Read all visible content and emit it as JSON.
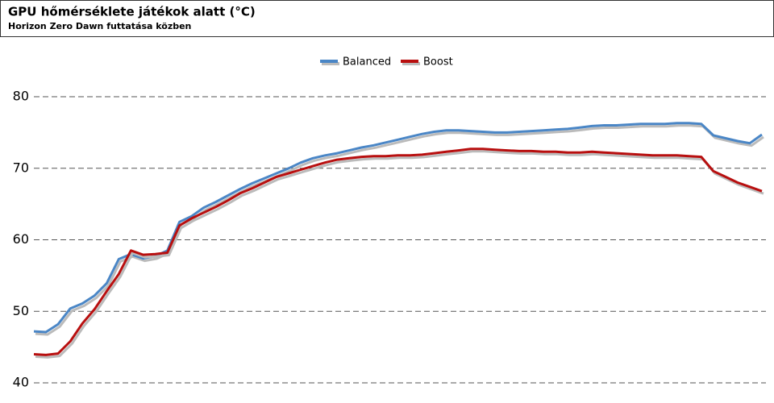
{
  "chart_data": {
    "type": "line",
    "title": "GPU hőmérséklete játékok alatt (°C)",
    "subtitle": "Horizon Zero Dawn futtatása közben",
    "ylim": [
      40,
      80
    ],
    "yticks": [
      40,
      50,
      60,
      70,
      80
    ],
    "grid": true,
    "legend": "top",
    "series": [
      {
        "name": "Balanced",
        "color": "#4a86c6",
        "values": [
          47.2,
          47.1,
          48.2,
          50.4,
          51.1,
          52.2,
          53.9,
          57.3,
          58.0,
          57.4,
          57.7,
          58.5,
          62.5,
          63.3,
          64.5,
          65.3,
          66.2,
          67.1,
          67.9,
          68.6,
          69.3,
          70.0,
          70.8,
          71.4,
          71.8,
          72.1,
          72.5,
          72.9,
          73.2,
          73.6,
          74.0,
          74.4,
          74.8,
          75.1,
          75.3,
          75.3,
          75.2,
          75.1,
          75.0,
          75.0,
          75.1,
          75.2,
          75.3,
          75.4,
          75.5,
          75.7,
          75.9,
          76.0,
          76.0,
          76.1,
          76.2,
          76.2,
          76.2,
          76.3,
          76.3,
          76.2,
          74.6,
          74.2,
          73.8,
          73.5,
          74.7
        ]
      },
      {
        "name": "Boost",
        "color": "#b80f0f",
        "values": [
          44.0,
          43.9,
          44.1,
          45.8,
          48.3,
          50.3,
          52.8,
          55.2,
          58.5,
          57.9,
          58.0,
          58.2,
          62.0,
          63.0,
          63.8,
          64.6,
          65.5,
          66.5,
          67.2,
          68.0,
          68.8,
          69.3,
          69.8,
          70.3,
          70.8,
          71.2,
          71.4,
          71.6,
          71.7,
          71.7,
          71.8,
          71.8,
          71.9,
          72.1,
          72.3,
          72.5,
          72.7,
          72.7,
          72.6,
          72.5,
          72.4,
          72.4,
          72.3,
          72.3,
          72.2,
          72.2,
          72.3,
          72.2,
          72.1,
          72.0,
          71.9,
          71.8,
          71.8,
          71.8,
          71.7,
          71.6,
          69.6,
          68.8,
          68.0,
          67.4,
          66.8
        ]
      }
    ]
  }
}
